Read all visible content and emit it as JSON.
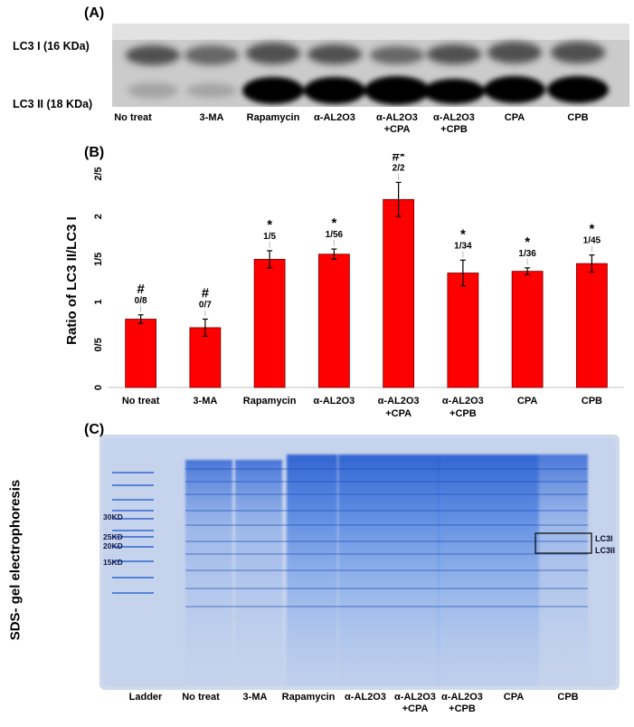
{
  "panel_a": {
    "label": "(A)",
    "band_labels": [
      "LC3 I (16 KDa)",
      "LC3 II (18 KDa)"
    ],
    "lanes": [
      {
        "line1": "No treat",
        "line2": ""
      },
      {
        "line1": "3-MA",
        "line2": ""
      },
      {
        "line1": "Rapamycin",
        "line2": ""
      },
      {
        "line1": "α-AL2O3",
        "line2": ""
      },
      {
        "line1": "α-AL2O3",
        "line2": "+CPA"
      },
      {
        "line1": "α-AL2O3",
        "line2": "+CPB"
      },
      {
        "line1": "CPA",
        "line2": ""
      },
      {
        "line1": "CPB",
        "line2": ""
      }
    ]
  },
  "panel_b": {
    "label": "(B)",
    "chart_data": {
      "type": "bar",
      "categories": [
        "No treat",
        "3-MA",
        "Rapamycin",
        "α-AL2O3",
        "α-AL2O3\n+CPA",
        "α-AL2O3\n+CPB",
        "CPA",
        "CPB"
      ],
      "category_lines": [
        [
          "No treat",
          ""
        ],
        [
          "3-MA",
          ""
        ],
        [
          "Rapamycin",
          ""
        ],
        [
          "α-AL2O3",
          ""
        ],
        [
          "α-AL2O3",
          "+CPA"
        ],
        [
          "α-AL2O3",
          "+CPB"
        ],
        [
          "CPA",
          ""
        ],
        [
          "CPB",
          ""
        ]
      ],
      "values": [
        0.8,
        0.7,
        1.5,
        1.56,
        2.2,
        1.34,
        1.36,
        1.45
      ],
      "errors": [
        0.05,
        0.1,
        0.1,
        0.06,
        0.2,
        0.15,
        0.04,
        0.1
      ],
      "value_labels": [
        "0/8",
        "0/7",
        "1/5",
        "1/56",
        "2/2",
        "1/34",
        "1/36",
        "1/45"
      ],
      "significance": [
        "#",
        "#",
        "*",
        "*",
        "#*",
        "*",
        "*",
        "*"
      ],
      "ylabel": "Ratio of LC3 II/LC3 I",
      "ylim": [
        0,
        2.5
      ],
      "yticks": [
        0,
        0.5,
        1,
        1.5,
        2,
        2.5
      ],
      "ytick_labels": [
        "0",
        "0/5",
        "1",
        "1/5",
        "2",
        "2/5"
      ],
      "bar_color": "#ff0000",
      "grid": false
    }
  },
  "panel_c": {
    "label": "(C)",
    "side_title": "SDS- gel electrophoresis",
    "marker_labels": [
      "30KD",
      "25KD",
      "20KD",
      "15KD"
    ],
    "band_annotations": [
      "LC3I",
      "LC3II"
    ],
    "lanes": [
      {
        "line1": "Ladder",
        "line2": ""
      },
      {
        "line1": "No treat",
        "line2": ""
      },
      {
        "line1": "3-MA",
        "line2": ""
      },
      {
        "line1": "Rapamycin",
        "line2": ""
      },
      {
        "line1": "α-AL2O3",
        "line2": ""
      },
      {
        "line1": "α-AL2O3",
        "line2": "+CPA"
      },
      {
        "line1": "α-AL2O3",
        "line2": "+CPB"
      },
      {
        "line1": "CPA",
        "line2": ""
      },
      {
        "line1": "CPB",
        "line2": ""
      }
    ]
  }
}
